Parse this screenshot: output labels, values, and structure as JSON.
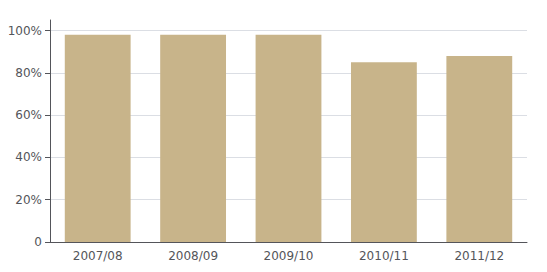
{
  "chart_data": {
    "type": "bar",
    "categories": [
      "2007/08",
      "2008/09",
      "2009/10",
      "2010/11",
      "2011/12"
    ],
    "values": [
      0.98,
      0.98,
      0.98,
      0.85,
      0.88
    ],
    "color": "#C8B48A",
    "ylim": [
      0,
      1.05
    ],
    "yticks": [
      0,
      {
        "value": 0.2,
        "label": "20%"
      },
      {
        "value": 0.4,
        "label": "40%"
      },
      {
        "value": 0.6,
        "label": "60%"
      },
      {
        "value": 0.8,
        "label": "80%"
      },
      {
        "value": 1.0,
        "label": "100%"
      }
    ],
    "grid": true
  }
}
